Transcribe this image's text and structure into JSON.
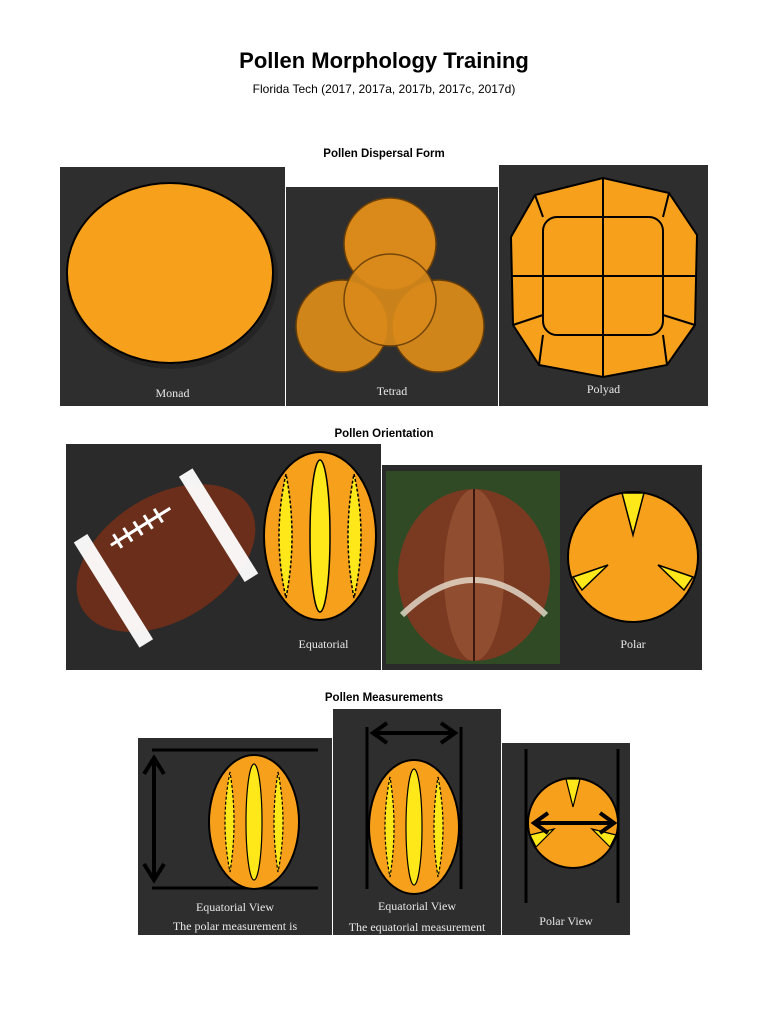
{
  "document": {
    "title": "Pollen Morphology Training",
    "subtitle": "Florida Tech (2017, 2017a, 2017b, 2017c, 2017d)"
  },
  "sections": {
    "dispersal": {
      "heading": "Pollen Dispersal Form",
      "captions": {
        "monad": "Monad",
        "tetrad": "Tetrad",
        "polyad": "Polyad"
      }
    },
    "orientation": {
      "heading": "Pollen Orientation",
      "captions": {
        "equatorial": "Equatorial",
        "polar": "Polar"
      }
    },
    "measurements": {
      "heading": "Pollen Measurements",
      "captions": {
        "eq_view_1": "Equatorial View",
        "eq_text_1": "The polar measurement is",
        "eq_view_2": "Equatorial View",
        "eq_text_2": "The equatorial measurement",
        "polar_view": "Polar View"
      }
    }
  },
  "colors": {
    "panel_bg": "#2e2e2e",
    "pollen_orange": "#f7a01c",
    "aperture_yellow": "#ffe81a",
    "football_brown": "#6b2e1a"
  }
}
